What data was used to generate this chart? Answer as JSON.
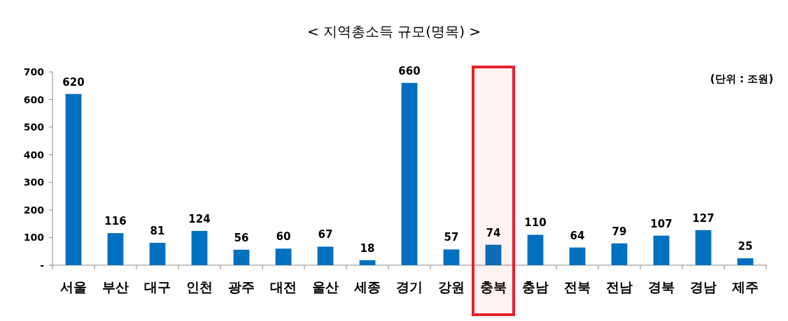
{
  "chart_data": {
    "type": "bar",
    "title": "< 지역총소득 규모(명목) >",
    "categories": [
      "서울",
      "부산",
      "대구",
      "인천",
      "광주",
      "대전",
      "울산",
      "세종",
      "경기",
      "강원",
      "충북",
      "충남",
      "전북",
      "전남",
      "경북",
      "경남",
      "제주"
    ],
    "values": [
      620,
      116,
      81,
      124,
      56,
      60,
      67,
      18,
      660,
      57,
      74,
      110,
      64,
      79,
      107,
      127,
      25
    ],
    "color": "#0070c0",
    "ylim": [
      0,
      700
    ],
    "yticks": [
      {
        "value": 0,
        "label": "-"
      },
      100,
      200,
      300,
      400,
      500,
      600,
      700
    ],
    "data_labels": true,
    "grid": false,
    "annotations": [
      "(단위 : 조원)"
    ],
    "bands": [
      {
        "axis": "x",
        "from": "충북",
        "to": "충북",
        "color": "#e8202a"
      }
    ]
  }
}
